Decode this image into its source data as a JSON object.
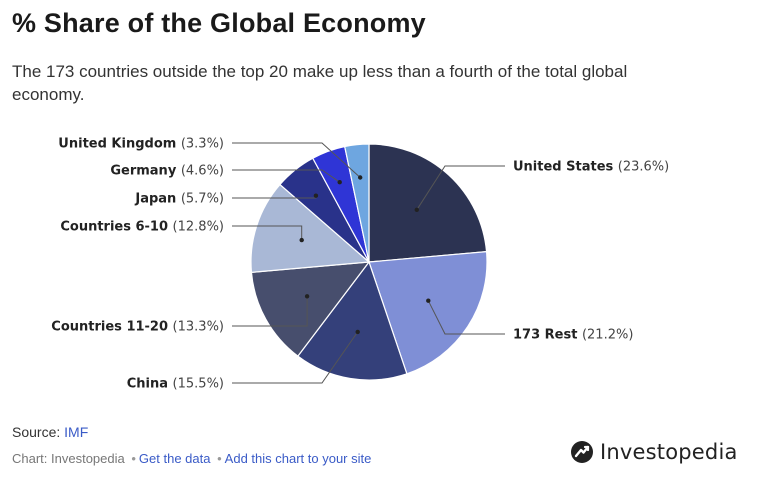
{
  "title": "% Share of the Global Economy",
  "subtitle": "The 173 countries outside the top 20 make up less than a fourth of the total global economy.",
  "footer": {
    "source_prefix": "Source: ",
    "source_link": "IMF",
    "credit_prefix": "Chart: Investopedia",
    "separator": "•",
    "get_data": "Get the data",
    "add_chart": "Add this chart to your site"
  },
  "brand": {
    "name": "Investopedia",
    "icon": "investopedia-logo-icon"
  },
  "chart_data": {
    "type": "pie",
    "title": "% Share of the Global Economy",
    "slices": [
      {
        "name": "United States",
        "value": 23.6,
        "value_label": "(23.6%)",
        "color": "#2c3352"
      },
      {
        "name": "173 Rest",
        "value": 21.2,
        "value_label": "(21.2%)",
        "color": "#7f8fd6"
      },
      {
        "name": "China",
        "value": 15.5,
        "value_label": "(15.5%)",
        "color": "#34407a"
      },
      {
        "name": "Countries 11-20",
        "value": 13.3,
        "value_label": "(13.3%)",
        "color": "#474e6d"
      },
      {
        "name": "Countries 6-10",
        "value": 12.8,
        "value_label": "(12.8%)",
        "color": "#a9b8d6"
      },
      {
        "name": "Japan",
        "value": 5.7,
        "value_label": "(5.7%)",
        "color": "#29328a"
      },
      {
        "name": "Germany",
        "value": 4.6,
        "value_label": "(4.6%)",
        "color": "#2f35d6"
      },
      {
        "name": "United Kingdom",
        "value": 3.3,
        "value_label": "(3.3%)",
        "color": "#6ea6e0"
      }
    ]
  }
}
